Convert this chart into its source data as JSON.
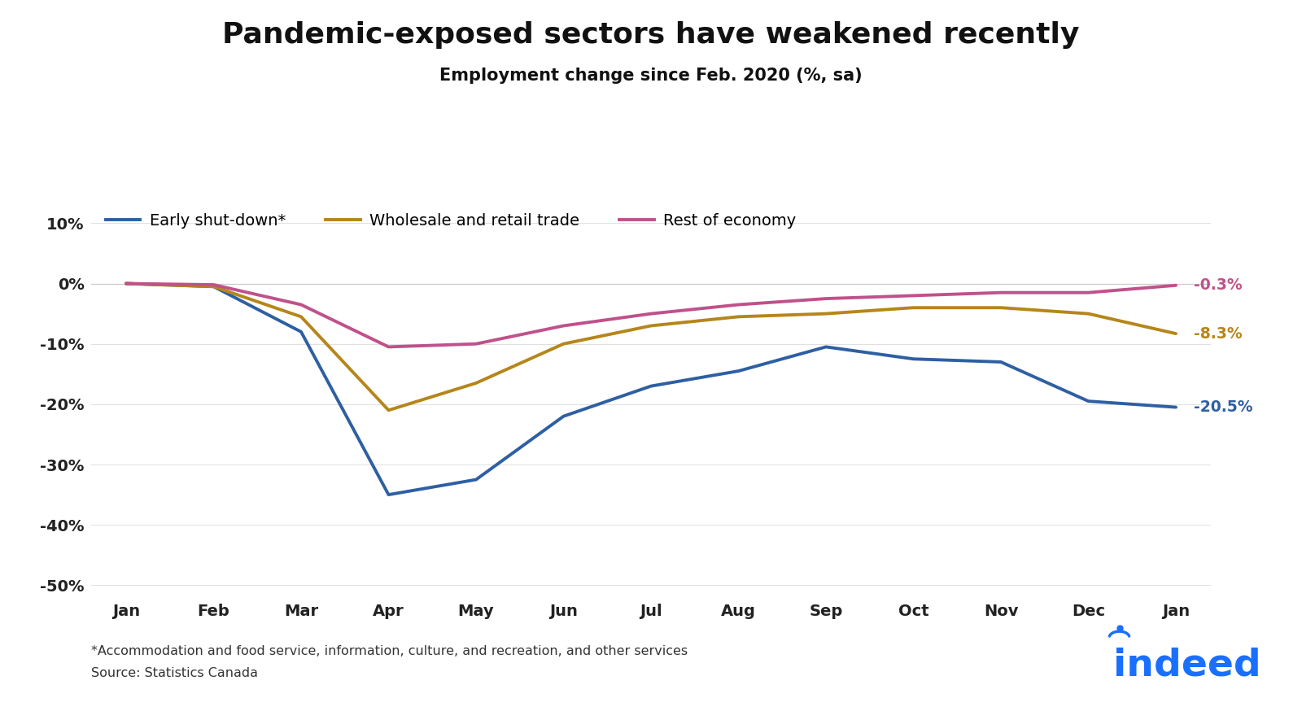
{
  "title": "Pandemic-exposed sectors have weakened recently",
  "subtitle": "Employment change since Feb. 2020 (%, sa)",
  "x_labels": [
    "Jan",
    "Feb",
    "Mar",
    "Apr",
    "May",
    "Jun",
    "Jul",
    "Aug",
    "Sep",
    "Oct",
    "Nov",
    "Dec",
    "Jan"
  ],
  "early_shutdown": [
    0.0,
    -0.5,
    -8.0,
    -35.0,
    -32.5,
    -22.0,
    -17.0,
    -14.5,
    -10.5,
    -12.5,
    -13.0,
    -19.5,
    -20.5
  ],
  "wholesale_retail": [
    0.0,
    -0.5,
    -5.5,
    -21.0,
    -16.5,
    -10.0,
    -7.0,
    -5.5,
    -5.0,
    -4.0,
    -4.0,
    -5.0,
    -8.3
  ],
  "rest_of_economy": [
    0.0,
    -0.2,
    -3.5,
    -10.5,
    -10.0,
    -7.0,
    -5.0,
    -3.5,
    -2.5,
    -2.0,
    -1.5,
    -1.5,
    -0.3
  ],
  "colors": {
    "early_shutdown": "#2E5FA3",
    "wholesale_retail": "#B5861A",
    "rest_of_economy": "#C0518A"
  },
  "end_labels": {
    "early_shutdown": "-20.5%",
    "wholesale_retail": "-8.3%",
    "rest_of_economy": "-0.3%"
  },
  "ylim": [
    -52,
    14
  ],
  "yticks": [
    -50,
    -40,
    -30,
    -20,
    -10,
    0,
    10
  ],
  "ytick_labels": [
    "-50%",
    "-40%",
    "-30%",
    "-20%",
    "-10%",
    "0%",
    "10%"
  ],
  "background_color": "#FFFFFF",
  "footnote1": "*Accommodation and food service, information, culture, and recreation, and other services",
  "footnote2": "Source: Statistics Canada",
  "indeed_color": "#1A6FFF",
  "line_width": 2.8,
  "legend_labels": [
    "Early shut-down*",
    "Wholesale and retail trade",
    "Rest of economy"
  ]
}
